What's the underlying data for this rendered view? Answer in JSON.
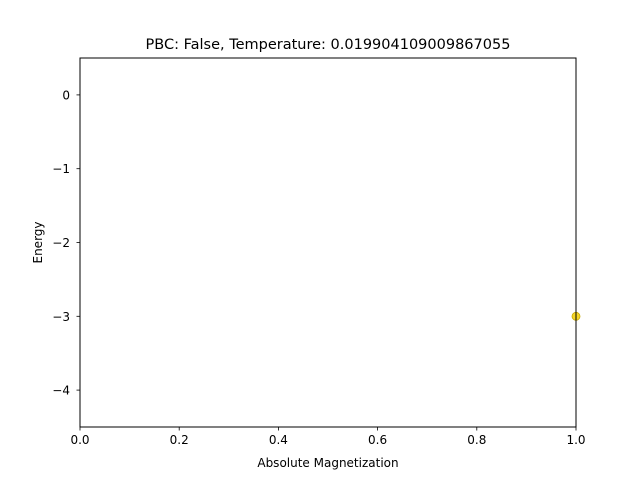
{
  "chart_data": {
    "type": "scatter",
    "title": "PBC: False, Temperature: 0.019904109009867055",
    "xlabel": "Absolute Magnetization",
    "ylabel": "Energy",
    "xlim": [
      0.0,
      1.0
    ],
    "ylim": [
      -4.5,
      0.5
    ],
    "xticks": [
      "0.0",
      "0.2",
      "0.4",
      "0.6",
      "0.8",
      "1.0"
    ],
    "xtick_values": [
      0.0,
      0.2,
      0.4,
      0.6,
      0.8,
      1.0
    ],
    "yticks": [
      "0",
      "−1",
      "−2",
      "−3",
      "−4"
    ],
    "ytick_values": [
      0,
      -1,
      -2,
      -3,
      -4
    ],
    "grid": false,
    "points": [
      {
        "x": 1.0,
        "y": -3.0
      }
    ],
    "colors": {
      "point_fill": "#f5d629",
      "point_edge": "#c8a800"
    }
  }
}
